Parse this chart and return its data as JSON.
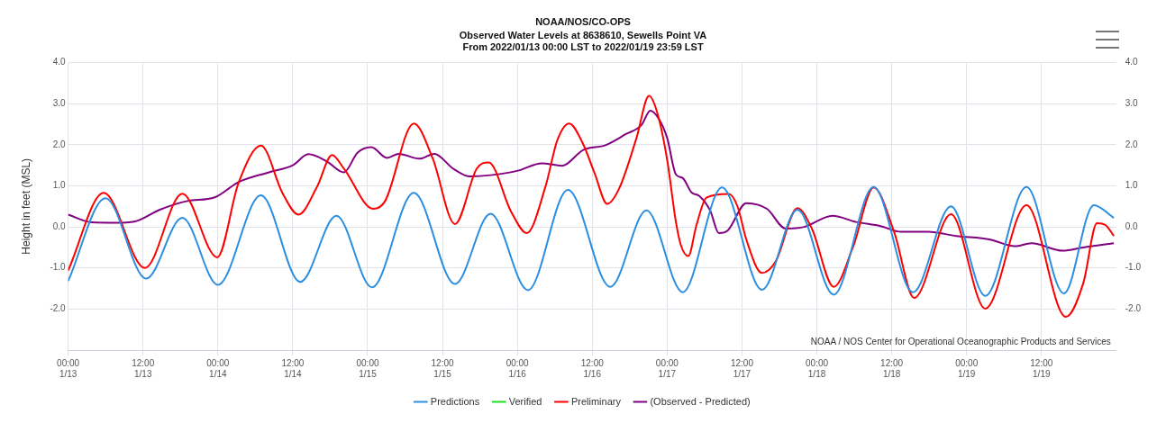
{
  "chart_data": {
    "type": "line",
    "title": "NOAA/NOS/CO-OPS",
    "subtitle": "Observed Water Levels at 8638610, Sewells Point VA\nFrom 2022/01/13 00:00 LST to 2022/01/19 23:59 LST",
    "ylabel": "Height in feet (MSL)",
    "annotations": [
      "NOAA / NOS Center for Operational Oceanographic Products and Services"
    ],
    "xlim": [
      "2022-01-13T00:00",
      "2022-01-19T23:59"
    ],
    "xticks": [
      {
        "value": "2022-01-13T00:00",
        "label": "00:00\n1/13"
      },
      {
        "value": "2022-01-13T12:00",
        "label": "12:00\n1/13"
      },
      {
        "value": "2022-01-14T00:00",
        "label": "00:00\n1/14"
      },
      {
        "value": "2022-01-14T12:00",
        "label": "12:00\n1/14"
      },
      {
        "value": "2022-01-15T00:00",
        "label": "00:00\n1/15"
      },
      {
        "value": "2022-01-15T12:00",
        "label": "12:00\n1/15"
      },
      {
        "value": "2022-01-16T00:00",
        "label": "00:00\n1/16"
      },
      {
        "value": "2022-01-16T12:00",
        "label": "12:00\n1/16"
      },
      {
        "value": "2022-01-17T00:00",
        "label": "00:00\n1/17"
      },
      {
        "value": "2022-01-17T12:00",
        "label": "12:00\n1/17"
      },
      {
        "value": "2022-01-18T00:00",
        "label": "00:00\n1/18"
      },
      {
        "value": "2022-01-18T12:00",
        "label": "12:00\n1/18"
      },
      {
        "value": "2022-01-19T00:00",
        "label": "00:00\n1/19"
      },
      {
        "value": "2022-01-19T12:00",
        "label": "12:00\n1/19"
      }
    ],
    "ylim": [
      -3,
      4
    ],
    "yticks": [
      {
        "value": -3,
        "label": null
      },
      {
        "value": -2,
        "label": "-2.0"
      },
      {
        "value": -1,
        "label": "-1.0"
      },
      {
        "value": 0,
        "label": "0.0"
      },
      {
        "value": 1,
        "label": "1.0"
      },
      {
        "value": 2,
        "label": "2.0"
      },
      {
        "value": 3,
        "label": "3.0"
      },
      {
        "value": 4,
        "label": "4.0"
      }
    ],
    "y2lim": [
      -3,
      4
    ],
    "y2ticks": [
      {
        "value": -3,
        "label": null
      },
      {
        "value": -2,
        "label": "-2.0"
      },
      {
        "value": -1,
        "label": "-1.0"
      },
      {
        "value": 0,
        "label": "0.0"
      },
      {
        "value": 1,
        "label": "1.0"
      },
      {
        "value": 2,
        "label": "2.0"
      },
      {
        "value": 3,
        "label": "3.0"
      },
      {
        "value": 4,
        "label": "4.0"
      }
    ],
    "grid": true,
    "legend": "bottom",
    "marker": "none",
    "line_style": "solid",
    "series": [
      {
        "name": "Predictions",
        "color": "#2b8ee0",
        "x": [
          "2022-01-13T00:00",
          "2022-01-13T06:00",
          "2022-01-13T12:30",
          "2022-01-13T18:18",
          "2022-01-14T00:00",
          "2022-01-14T06:54",
          "2022-01-14T13:12",
          "2022-01-14T19:00",
          "2022-01-15T00:42",
          "2022-01-15T07:24",
          "2022-01-15T14:00",
          "2022-01-15T19:42",
          "2022-01-16T01:42",
          "2022-01-16T08:06",
          "2022-01-16T14:54",
          "2022-01-16T20:42",
          "2022-01-17T02:30",
          "2022-01-17T08:48",
          "2022-01-17T15:12",
          "2022-01-17T20:54",
          "2022-01-18T02:42",
          "2022-01-18T09:06",
          "2022-01-18T15:24",
          "2022-01-18T21:30",
          "2022-01-19T03:00",
          "2022-01-19T09:36",
          "2022-01-19T15:36",
          "2022-01-19T20:24",
          "2022-01-19T23:36"
        ],
        "values": [
          -1.32,
          0.7,
          -1.26,
          0.22,
          -1.41,
          0.77,
          -1.34,
          0.27,
          -1.47,
          0.83,
          -1.39,
          0.32,
          -1.54,
          0.9,
          -1.46,
          0.4,
          -1.59,
          0.96,
          -1.53,
          0.42,
          -1.65,
          0.97,
          -1.59,
          0.5,
          -1.68,
          0.97,
          -1.62,
          0.53,
          0.22
        ]
      },
      {
        "name": "Verified",
        "color": "#22dd22"
      },
      {
        "name": "Preliminary",
        "color": "#ff0000",
        "x": [
          "2022-01-13T00:00",
          "2022-01-13T05:42",
          "2022-01-13T12:18",
          "2022-01-13T18:18",
          "2022-01-13T23:54",
          "2022-01-14T03:18",
          "2022-01-14T06:54",
          "2022-01-14T10:24",
          "2022-01-14T12:54",
          "2022-01-14T15:54",
          "2022-01-14T18:18",
          "2022-01-14T20:12",
          "2022-01-15T00:54",
          "2022-01-15T02:48",
          "2022-01-15T07:24",
          "2022-01-15T10:24",
          "2022-01-15T14:00",
          "2022-01-15T17:30",
          "2022-01-15T19:24",
          "2022-01-15T23:00",
          "2022-01-16T01:30",
          "2022-01-16T04:30",
          "2022-01-16T06:24",
          "2022-01-16T08:18",
          "2022-01-16T10:30",
          "2022-01-16T12:24",
          "2022-01-16T14:24",
          "2022-01-16T16:18",
          "2022-01-16T19:06",
          "2022-01-16T21:06",
          "2022-01-16T22:24",
          "2022-01-17T00:00",
          "2022-01-17T01:24",
          "2022-01-17T02:12",
          "2022-01-17T03:24",
          "2022-01-17T04:42",
          "2022-01-17T06:18",
          "2022-01-17T09:54",
          "2022-01-17T11:18",
          "2022-01-17T12:42",
          "2022-01-17T15:12",
          "2022-01-17T17:24",
          "2022-01-17T20:54",
          "2022-01-17T23:12",
          "2022-01-18T02:42",
          "2022-01-18T05:48",
          "2022-01-18T09:06",
          "2022-01-18T12:24",
          "2022-01-18T15:36",
          "2022-01-18T21:30",
          "2022-01-19T03:00",
          "2022-01-19T09:36",
          "2022-01-19T15:54",
          "2022-01-19T18:42",
          "2022-01-19T20:54",
          "2022-01-19T22:18",
          "2022-01-19T23:36"
        ],
        "values": [
          -1.06,
          0.83,
          -1.0,
          0.81,
          -0.74,
          1.07,
          1.98,
          0.81,
          0.3,
          0.98,
          1.75,
          1.42,
          0.44,
          0.63,
          2.52,
          1.68,
          0.07,
          1.42,
          1.57,
          0.37,
          -0.15,
          0.98,
          2.11,
          2.52,
          2.03,
          1.3,
          0.56,
          0.93,
          2.17,
          3.19,
          2.79,
          1.64,
          0.13,
          -0.44,
          -0.71,
          0.04,
          0.71,
          0.8,
          0.49,
          -0.31,
          -1.12,
          -0.84,
          0.46,
          -0.04,
          -1.46,
          -0.49,
          0.96,
          -0.13,
          -1.73,
          0.31,
          -1.99,
          0.53,
          -2.19,
          -1.37,
          0.09,
          0.04,
          -0.22
        ]
      },
      {
        "name": "(Observed - Predicted)",
        "color": "#800080",
        "x": [
          "2022-01-13T00:00",
          "2022-01-13T03:48",
          "2022-01-13T07:36",
          "2022-01-13T10:36",
          "2022-01-13T14:42",
          "2022-01-13T19:06",
          "2022-01-13T23:30",
          "2022-01-14T03:18",
          "2022-01-14T08:12",
          "2022-01-14T12:00",
          "2022-01-14T14:30",
          "2022-01-14T17:30",
          "2022-01-14T20:12",
          "2022-01-14T22:24",
          "2022-01-15T00:36",
          "2022-01-15T03:06",
          "2022-01-15T05:00",
          "2022-01-15T08:18",
          "2022-01-15T10:42",
          "2022-01-15T13:42",
          "2022-01-15T16:24",
          "2022-01-15T19:42",
          "2022-01-16T00:06",
          "2022-01-16T03:54",
          "2022-01-16T07:12",
          "2022-01-16T10:30",
          "2022-01-16T14:06",
          "2022-01-16T17:24",
          "2022-01-16T19:54",
          "2022-01-16T21:18",
          "2022-01-16T22:36",
          "2022-01-17T00:00",
          "2022-01-17T01:24",
          "2022-01-17T02:30",
          "2022-01-17T03:54",
          "2022-01-17T05:12",
          "2022-01-17T06:54",
          "2022-01-17T08:18",
          "2022-01-17T09:42",
          "2022-01-17T12:42",
          "2022-01-17T16:00",
          "2022-01-17T19:00",
          "2022-01-17T22:00",
          "2022-01-18T02:30",
          "2022-01-18T06:18",
          "2022-01-18T10:12",
          "2022-01-18T13:30",
          "2022-01-18T17:54",
          "2022-01-18T22:18",
          "2022-01-19T03:48",
          "2022-01-19T07:42",
          "2022-01-19T10:24",
          "2022-01-19T15:24",
          "2022-01-19T18:42",
          "2022-01-19T23:36"
        ],
        "values": [
          0.3,
          0.11,
          0.1,
          0.13,
          0.42,
          0.63,
          0.72,
          1.09,
          1.33,
          1.5,
          1.77,
          1.59,
          1.33,
          1.81,
          1.94,
          1.68,
          1.78,
          1.66,
          1.78,
          1.42,
          1.23,
          1.26,
          1.37,
          1.55,
          1.49,
          1.87,
          1.99,
          2.26,
          2.48,
          2.83,
          2.65,
          2.17,
          1.28,
          1.19,
          0.84,
          0.75,
          0.4,
          -0.15,
          -0.09,
          0.58,
          0.44,
          -0.04,
          0.0,
          0.27,
          0.12,
          0.02,
          -0.12,
          -0.12,
          -0.22,
          -0.31,
          -0.47,
          -0.4,
          -0.58,
          -0.5,
          -0.4
        ]
      }
    ]
  }
}
